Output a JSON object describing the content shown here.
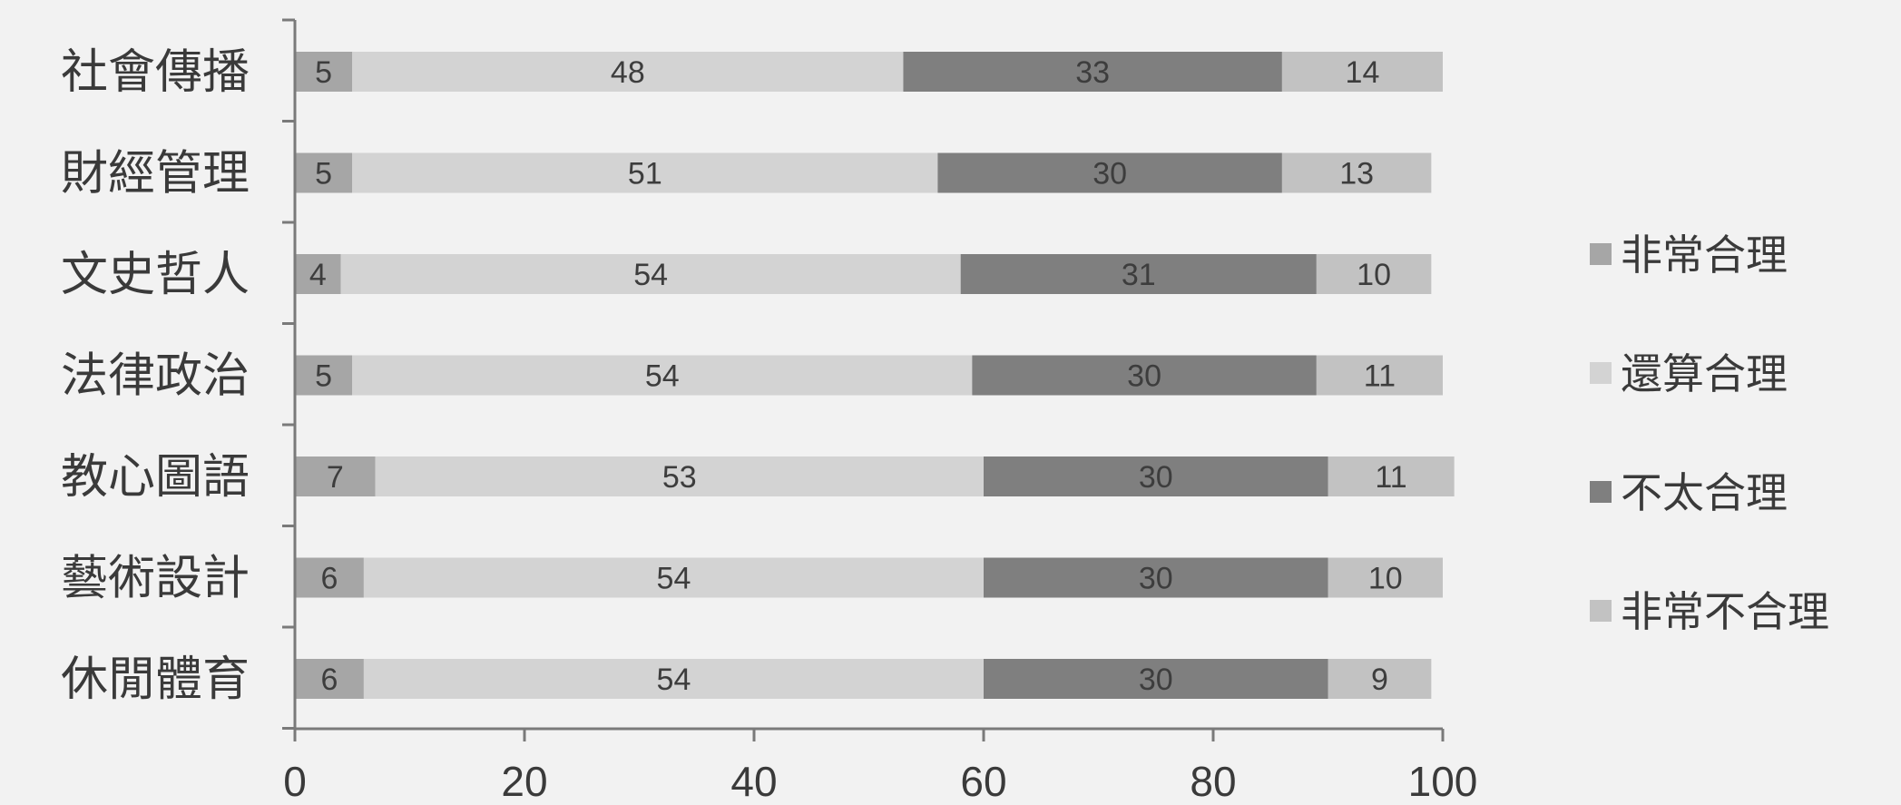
{
  "chart_data": {
    "type": "bar",
    "orientation": "horizontal",
    "stacked": true,
    "categories": [
      "社會傳播",
      "財經管理",
      "文史哲人",
      "法律政治",
      "教心圖語",
      "藝術設計",
      "休閒體育"
    ],
    "series": [
      {
        "name": "非常合理",
        "color": "#a6a6a6",
        "values": [
          5,
          5,
          4,
          5,
          7,
          6,
          6
        ]
      },
      {
        "name": "還算合理",
        "color": "#d3d3d3",
        "values": [
          48,
          51,
          54,
          54,
          53,
          54,
          54
        ]
      },
      {
        "name": "不太合理",
        "color": "#7f7f7f",
        "values": [
          33,
          30,
          31,
          30,
          30,
          30,
          30
        ]
      },
      {
        "name": "非常不合理",
        "color": "#c2c2c2",
        "values": [
          14,
          13,
          10,
          11,
          11,
          10,
          9
        ]
      }
    ],
    "xlim": [
      0,
      100
    ],
    "xticks": [
      0,
      20,
      40,
      60,
      80,
      100
    ],
    "legend_position": "right",
    "grid": false
  }
}
